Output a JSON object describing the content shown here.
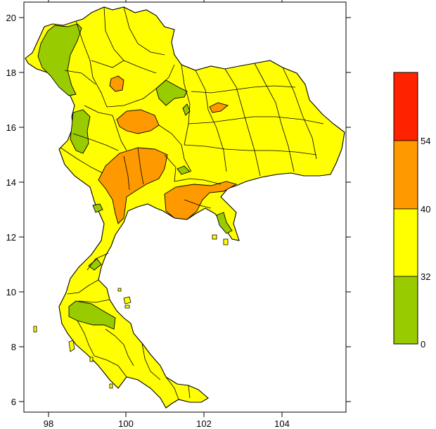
{
  "map": {
    "x_ticks": [
      "98",
      "100",
      "102",
      "104"
    ],
    "y_ticks": [
      "20",
      "18",
      "16",
      "14",
      "12",
      "10",
      "8",
      "6"
    ],
    "colors": {
      "background": "#ffffff",
      "green": "#99cc00",
      "yellow": "#ffff00",
      "orange": "#ff9900",
      "red": "#ff2200",
      "outline": "#000000"
    }
  },
  "legend": {
    "labels": [
      "54",
      "40",
      "32",
      "0"
    ],
    "bins": [
      {
        "color": "#ff2200",
        "range": "54+"
      },
      {
        "color": "#ff9900",
        "range": "40-54"
      },
      {
        "color": "#ffff00",
        "range": "32-40"
      },
      {
        "color": "#99cc00",
        "range": "0-32"
      }
    ]
  }
}
